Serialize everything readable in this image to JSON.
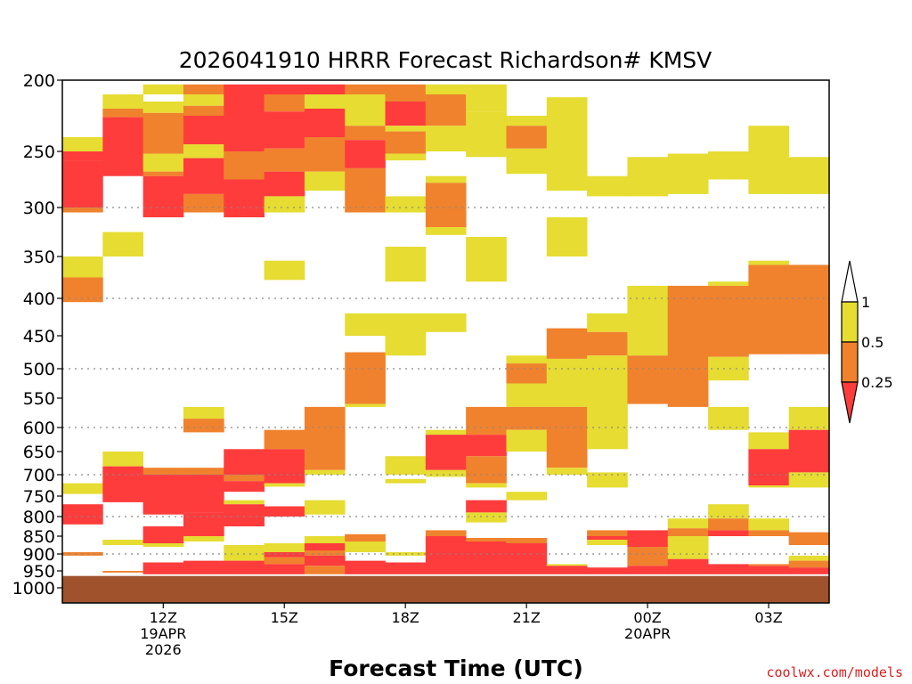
{
  "chart_data": {
    "type": "heatmap",
    "title": "2026041910 HRRR Forecast Richardson# KMSV",
    "xlabel": "Forecast Time (UTC)",
    "ylabel": "",
    "credit": "coolwx.com/models",
    "x_range": [
      "2026-04-19T10:00Z",
      "2026-04-20T04:00Z"
    ],
    "y_range": [
      200,
      1040
    ],
    "y_scale": "pressure (log-like, inverted)",
    "y_ticks": [
      200,
      250,
      300,
      350,
      400,
      450,
      500,
      550,
      600,
      650,
      700,
      750,
      800,
      850,
      900,
      950,
      1000
    ],
    "y_tick_labels": [
      "200",
      "250",
      "300",
      "350",
      "400",
      "450",
      "500",
      "550",
      "600",
      "650",
      "700",
      "750",
      "800",
      "850",
      "900",
      "950",
      "1000"
    ],
    "y_gridlines": [
      300,
      400,
      500,
      600,
      700,
      800,
      900
    ],
    "x_ticks": [
      {
        "time": "2026-04-19T12:00Z",
        "lines": [
          "12Z",
          "19APR",
          "2026"
        ]
      },
      {
        "time": "2026-04-19T15:00Z",
        "lines": [
          "15Z"
        ]
      },
      {
        "time": "2026-04-19T18:00Z",
        "lines": [
          "18Z"
        ]
      },
      {
        "time": "2026-04-19T21:00Z",
        "lines": [
          "21Z"
        ]
      },
      {
        "time": "2026-04-20T00:00Z",
        "lines": [
          "00Z",
          "20APR"
        ]
      },
      {
        "time": "2026-04-20T03:00Z",
        "lines": [
          "03Z"
        ]
      }
    ],
    "legend": {
      "placement": "right",
      "labels": [
        "1",
        "0.5",
        "0.25"
      ],
      "bins": [
        {
          "range": "< 0.25",
          "color": "#ff3c3c"
        },
        {
          "range": "0.25 - 0.5",
          "color": "#f0822d"
        },
        {
          "range": "0.5 - 1",
          "color": "#e6dc32"
        },
        {
          "range": "> 1",
          "color": "#ffffff"
        }
      ]
    },
    "colors": {
      "red": "#ff3c3c",
      "orange": "#f0822d",
      "yellow": "#e6dc32",
      "ground": "#a0522d"
    },
    "ground": {
      "from_pressure": 965,
      "to_pressure": 1040
    },
    "columns": [
      {
        "time": "2026-04-19T10:00Z",
        "cells": [
          [
            "y",
            240,
            250
          ],
          [
            "r",
            250,
            258
          ],
          [
            "r",
            258,
            300
          ],
          [
            "o",
            300,
            305
          ],
          [
            "y",
            350,
            375
          ],
          [
            "o",
            375,
            405
          ],
          [
            "y",
            720,
            745
          ],
          [
            "r",
            770,
            820
          ],
          [
            "o",
            895,
            905
          ]
        ]
      },
      {
        "time": "2026-04-19T11:00Z",
        "cells": [
          [
            "y",
            210,
            220
          ],
          [
            "o",
            220,
            226
          ],
          [
            "r",
            226,
            272
          ],
          [
            "y",
            325,
            350
          ],
          [
            "y",
            650,
            682
          ],
          [
            "r",
            682,
            765
          ],
          [
            "y",
            860,
            875
          ],
          [
            "o",
            950,
            955
          ]
        ]
      },
      {
        "time": "2026-04-19T12:00Z",
        "cells": [
          [
            "y",
            203,
            210
          ],
          [
            "y",
            215,
            223
          ],
          [
            "o",
            223,
            252
          ],
          [
            "y",
            252,
            268
          ],
          [
            "o",
            268,
            272
          ],
          [
            "r",
            272,
            310
          ],
          [
            "o",
            685,
            700
          ],
          [
            "r",
            700,
            795
          ],
          [
            "r",
            825,
            870
          ],
          [
            "y",
            870,
            880
          ],
          [
            "r",
            925,
            960
          ]
        ]
      },
      {
        "time": "2026-04-19T13:00Z",
        "cells": [
          [
            "o",
            203,
            210
          ],
          [
            "y",
            210,
            218
          ],
          [
            "o",
            218,
            225
          ],
          [
            "r",
            225,
            245
          ],
          [
            "y",
            245,
            256
          ],
          [
            "r",
            256,
            288
          ],
          [
            "o",
            288,
            305
          ],
          [
            "y",
            565,
            585
          ],
          [
            "o",
            585,
            610
          ],
          [
            "o",
            685,
            700
          ],
          [
            "r",
            700,
            790
          ],
          [
            "r",
            790,
            850
          ],
          [
            "y",
            850,
            865
          ],
          [
            "r",
            920,
            960
          ]
        ]
      },
      {
        "time": "2026-04-19T14:00Z",
        "cells": [
          [
            "r",
            203,
            210
          ],
          [
            "r",
            210,
            220
          ],
          [
            "r",
            220,
            250
          ],
          [
            "o",
            250,
            275
          ],
          [
            "r",
            275,
            310
          ],
          [
            "r",
            645,
            700
          ],
          [
            "o",
            700,
            715
          ],
          [
            "r",
            715,
            740
          ],
          [
            "y",
            760,
            770
          ],
          [
            "r",
            770,
            825
          ],
          [
            "y",
            875,
            920
          ],
          [
            "r",
            920,
            960
          ]
        ]
      },
      {
        "time": "2026-04-19T15:00Z",
        "cells": [
          [
            "r",
            203,
            210
          ],
          [
            "o",
            210,
            222
          ],
          [
            "r",
            222,
            248
          ],
          [
            "o",
            248,
            268
          ],
          [
            "r",
            268,
            290
          ],
          [
            "y",
            290,
            305
          ],
          [
            "y",
            355,
            378
          ],
          [
            "o",
            605,
            645
          ],
          [
            "r",
            645,
            720
          ],
          [
            "y",
            720,
            728
          ],
          [
            "r",
            775,
            800
          ],
          [
            "y",
            870,
            895
          ],
          [
            "r",
            895,
            910
          ],
          [
            "o",
            910,
            930
          ],
          [
            "r",
            930,
            960
          ]
        ]
      },
      {
        "time": "2026-04-19T16:00Z",
        "cells": [
          [
            "r",
            203,
            210
          ],
          [
            "y",
            210,
            220
          ],
          [
            "r",
            220,
            240
          ],
          [
            "o",
            240,
            268
          ],
          [
            "y",
            268,
            285
          ],
          [
            "o",
            565,
            690
          ],
          [
            "y",
            690,
            700
          ],
          [
            "y",
            760,
            795
          ],
          [
            "y",
            850,
            870
          ],
          [
            "r",
            870,
            890
          ],
          [
            "o",
            890,
            905
          ],
          [
            "r",
            905,
            935
          ],
          [
            "o",
            935,
            960
          ]
        ]
      },
      {
        "time": "2026-04-19T17:00Z",
        "cells": [
          [
            "o",
            203,
            210
          ],
          [
            "y",
            210,
            232
          ],
          [
            "o",
            232,
            242
          ],
          [
            "r",
            242,
            265
          ],
          [
            "o",
            265,
            305
          ],
          [
            "y",
            420,
            450
          ],
          [
            "o",
            475,
            560
          ],
          [
            "y",
            560,
            565
          ],
          [
            "o",
            845,
            865
          ],
          [
            "y",
            865,
            895
          ],
          [
            "r",
            920,
            960
          ]
        ]
      },
      {
        "time": "2026-04-19T18:00Z",
        "cells": [
          [
            "o",
            203,
            215
          ],
          [
            "r",
            215,
            232
          ],
          [
            "y",
            232,
            236
          ],
          [
            "o",
            236,
            252
          ],
          [
            "y",
            252,
            258
          ],
          [
            "y",
            290,
            305
          ],
          [
            "y",
            340,
            380
          ],
          [
            "y",
            420,
            480
          ],
          [
            "y",
            660,
            700
          ],
          [
            "y",
            710,
            720
          ],
          [
            "y",
            895,
            905
          ],
          [
            "r",
            925,
            960
          ]
        ]
      },
      {
        "time": "2026-04-19T19:00Z",
        "cells": [
          [
            "y",
            203,
            210
          ],
          [
            "o",
            210,
            232
          ],
          [
            "y",
            232,
            250
          ],
          [
            "y",
            272,
            278
          ],
          [
            "o",
            278,
            320
          ],
          [
            "y",
            320,
            328
          ],
          [
            "y",
            420,
            445
          ],
          [
            "y",
            605,
            615
          ],
          [
            "r",
            615,
            690
          ],
          [
            "y",
            690,
            705
          ],
          [
            "o",
            835,
            850
          ],
          [
            "r",
            850,
            960
          ]
        ]
      },
      {
        "time": "2026-04-19T20:00Z",
        "cells": [
          [
            "y",
            203,
            222
          ],
          [
            "y",
            222,
            255
          ],
          [
            "y",
            330,
            380
          ],
          [
            "o",
            565,
            615
          ],
          [
            "r",
            615,
            660
          ],
          [
            "o",
            660,
            720
          ],
          [
            "y",
            720,
            730
          ],
          [
            "r",
            760,
            790
          ],
          [
            "y",
            790,
            815
          ],
          [
            "o",
            855,
            865
          ],
          [
            "r",
            865,
            960
          ]
        ]
      },
      {
        "time": "2026-04-19T21:00Z",
        "cells": [
          [
            "y",
            225,
            232
          ],
          [
            "o",
            232,
            248
          ],
          [
            "y",
            248,
            270
          ],
          [
            "y",
            480,
            492
          ],
          [
            "o",
            492,
            525
          ],
          [
            "y",
            525,
            565
          ],
          [
            "o",
            565,
            605
          ],
          [
            "y",
            605,
            650
          ],
          [
            "y",
            740,
            760
          ],
          [
            "o",
            855,
            870
          ],
          [
            "r",
            870,
            960
          ]
        ]
      },
      {
        "time": "2026-04-19T22:00Z",
        "cells": [
          [
            "y",
            212,
            285
          ],
          [
            "y",
            310,
            350
          ],
          [
            "o",
            440,
            485
          ],
          [
            "y",
            485,
            565
          ],
          [
            "o",
            565,
            685
          ],
          [
            "y",
            685,
            700
          ],
          [
            "y",
            930,
            935
          ],
          [
            "r",
            935,
            960
          ]
        ]
      },
      {
        "time": "2026-04-19T23:00Z",
        "cells": [
          [
            "y",
            272,
            290
          ],
          [
            "y",
            420,
            445
          ],
          [
            "o",
            445,
            480
          ],
          [
            "y",
            480,
            645
          ],
          [
            "y",
            695,
            730
          ],
          [
            "o",
            835,
            850
          ],
          [
            "r",
            850,
            860
          ],
          [
            "y",
            860,
            875
          ],
          [
            "r",
            940,
            960
          ]
        ]
      },
      {
        "time": "2026-04-20T00:00Z",
        "cells": [
          [
            "y",
            255,
            290
          ],
          [
            "y",
            385,
            480
          ],
          [
            "o",
            480,
            560
          ],
          [
            "r",
            835,
            880
          ],
          [
            "o",
            880,
            935
          ],
          [
            "r",
            935,
            960
          ]
        ]
      },
      {
        "time": "2026-04-20T01:00Z",
        "cells": [
          [
            "y",
            252,
            288
          ],
          [
            "o",
            385,
            565
          ],
          [
            "y",
            805,
            830
          ],
          [
            "o",
            830,
            850
          ],
          [
            "y",
            850,
            915
          ],
          [
            "r",
            915,
            960
          ]
        ]
      },
      {
        "time": "2026-04-20T02:00Z",
        "cells": [
          [
            "y",
            250,
            275
          ],
          [
            "y",
            380,
            385
          ],
          [
            "o",
            385,
            482
          ],
          [
            "y",
            482,
            520
          ],
          [
            "y",
            565,
            605
          ],
          [
            "y",
            770,
            805
          ],
          [
            "o",
            805,
            835
          ],
          [
            "r",
            835,
            850
          ],
          [
            "r",
            930,
            960
          ]
        ]
      },
      {
        "time": "2026-04-20T03:00Z",
        "cells": [
          [
            "y",
            232,
            288
          ],
          [
            "y",
            355,
            360
          ],
          [
            "o",
            360,
            478
          ],
          [
            "y",
            610,
            645
          ],
          [
            "r",
            645,
            725
          ],
          [
            "y",
            725,
            730
          ],
          [
            "y",
            805,
            835
          ],
          [
            "o",
            835,
            850
          ],
          [
            "o",
            930,
            935
          ],
          [
            "r",
            935,
            960
          ]
        ]
      },
      {
        "time": "2026-04-20T04:00Z",
        "cells": [
          [
            "y",
            255,
            288
          ],
          [
            "o",
            360,
            478
          ],
          [
            "y",
            565,
            605
          ],
          [
            "r",
            605,
            695
          ],
          [
            "y",
            695,
            730
          ],
          [
            "o",
            840,
            875
          ],
          [
            "y",
            905,
            920
          ],
          [
            "o",
            920,
            940
          ],
          [
            "r",
            940,
            960
          ]
        ]
      }
    ]
  }
}
